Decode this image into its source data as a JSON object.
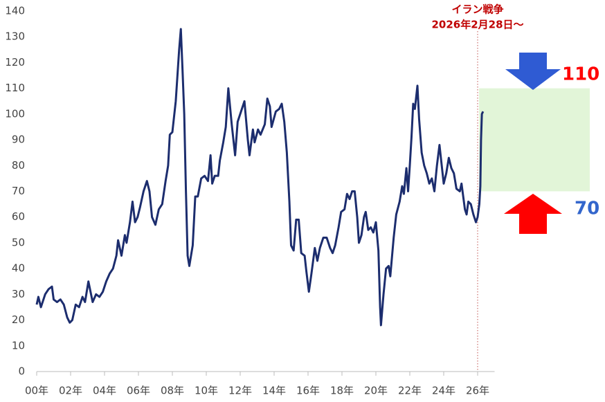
{
  "chart_data": {
    "type": "line",
    "x": [
      2000.0,
      2000.1,
      2000.25,
      2000.5,
      2000.7,
      2000.9,
      2001.0,
      2001.2,
      2001.4,
      2001.6,
      2001.8,
      2001.95,
      2002.1,
      2002.3,
      2002.5,
      2002.7,
      2002.85,
      2003.05,
      2003.3,
      2003.5,
      2003.7,
      2003.9,
      2004.1,
      2004.3,
      2004.5,
      2004.7,
      2004.8,
      2005.0,
      2005.2,
      2005.3,
      2005.5,
      2005.65,
      2005.8,
      2005.95,
      2006.1,
      2006.3,
      2006.5,
      2006.65,
      2006.8,
      2007.0,
      2007.2,
      2007.4,
      2007.6,
      2007.75,
      2007.85,
      2008.0,
      2008.2,
      2008.4,
      2008.5,
      2008.6,
      2008.7,
      2008.8,
      2008.9,
      2009.0,
      2009.2,
      2009.35,
      2009.5,
      2009.7,
      2009.9,
      2010.1,
      2010.25,
      2010.35,
      2010.5,
      2010.7,
      2010.8,
      2011.0,
      2011.15,
      2011.3,
      2011.5,
      2011.7,
      2011.85,
      2012.05,
      2012.25,
      2012.45,
      2012.55,
      2012.75,
      2012.85,
      2013.05,
      2013.2,
      2013.45,
      2013.6,
      2013.75,
      2013.85,
      2014.1,
      2014.3,
      2014.45,
      2014.6,
      2014.75,
      2014.9,
      2015.0,
      2015.15,
      2015.3,
      2015.45,
      2015.6,
      2015.8,
      2015.9,
      2016.05,
      2016.2,
      2016.4,
      2016.55,
      2016.7,
      2016.9,
      2017.1,
      2017.3,
      2017.45,
      2017.6,
      2017.8,
      2017.95,
      2018.15,
      2018.3,
      2018.45,
      2018.6,
      2018.75,
      2018.9,
      2019.0,
      2019.15,
      2019.3,
      2019.4,
      2019.55,
      2019.7,
      2019.85,
      2020.0,
      2020.15,
      2020.25,
      2020.3,
      2020.45,
      2020.6,
      2020.75,
      2020.85,
      2021.05,
      2021.2,
      2021.4,
      2021.55,
      2021.65,
      2021.8,
      2021.9,
      2022.0,
      2022.1,
      2022.2,
      2022.3,
      2022.45,
      2022.55,
      2022.7,
      2022.85,
      2023.0,
      2023.15,
      2023.3,
      2023.45,
      2023.6,
      2023.75,
      2023.85,
      2024.0,
      2024.15,
      2024.3,
      2024.45,
      2024.6,
      2024.75,
      2024.95,
      2025.05,
      2025.25,
      2025.35,
      2025.45,
      2025.6,
      2025.75,
      2025.9,
      2026.0,
      2026.1,
      2026.16,
      2026.2,
      2026.25,
      2026.32
    ],
    "values": [
      26,
      29,
      25,
      30,
      32,
      33,
      28,
      27,
      28,
      26,
      21,
      19,
      20,
      26,
      25,
      29,
      27,
      35,
      27,
      30,
      29,
      31,
      35,
      38,
      40,
      45,
      51,
      45,
      53,
      50,
      58,
      66,
      58,
      60,
      64,
      70,
      74,
      70,
      60,
      57,
      63,
      65,
      74,
      80,
      92,
      93,
      105,
      125,
      133,
      117,
      100,
      70,
      45,
      41,
      49,
      68,
      68,
      75,
      76,
      74,
      84,
      73,
      76,
      76,
      82,
      89,
      95,
      110,
      96,
      84,
      97,
      101,
      105,
      90,
      84,
      94,
      89,
      94,
      92,
      96,
      106,
      103,
      95,
      101,
      102,
      104,
      97,
      85,
      66,
      49,
      47,
      59,
      59,
      46,
      45,
      39,
      31,
      38,
      48,
      43,
      48,
      52,
      52,
      48,
      46,
      49,
      56,
      62,
      63,
      69,
      67,
      70,
      70,
      60,
      50,
      53,
      60,
      62,
      55,
      56,
      54,
      58,
      47,
      25,
      18,
      30,
      40,
      41,
      37,
      52,
      61,
      66,
      72,
      69,
      79,
      70,
      80,
      91,
      104,
      102,
      111,
      98,
      85,
      80,
      77,
      73,
      75,
      70,
      80,
      88,
      82,
      73,
      77,
      83,
      79,
      77,
      71,
      70,
      73,
      63,
      61,
      66,
      65,
      61,
      58,
      60,
      65,
      72,
      90,
      100,
      101
    ],
    "color": "#1c2d6e",
    "xlim": [
      2000,
      2027
    ],
    "xticks": [
      {
        "value": 2000,
        "label": "00年"
      },
      {
        "value": 2002,
        "label": "02年"
      },
      {
        "value": 2004,
        "label": "04年"
      },
      {
        "value": 2006,
        "label": "06年"
      },
      {
        "value": 2008,
        "label": "08年"
      },
      {
        "value": 2010,
        "label": "10年"
      },
      {
        "value": 2012,
        "label": "12年"
      },
      {
        "value": 2014,
        "label": "14年"
      },
      {
        "value": 2016,
        "label": "16年"
      },
      {
        "value": 2018,
        "label": "18年"
      },
      {
        "value": 2020,
        "label": "20年"
      },
      {
        "value": 2022,
        "label": "22年"
      },
      {
        "value": 2024,
        "label": "24年"
      },
      {
        "value": 2026,
        "label": "26年"
      }
    ],
    "ylim": [
      0,
      140
    ],
    "yticks": [
      0,
      10,
      20,
      30,
      40,
      50,
      60,
      70,
      80,
      90,
      100,
      110,
      120,
      130,
      140
    ],
    "grid": false,
    "event": {
      "x": 2026.0,
      "lines": [
        "イラン戦争",
        "2026年2月28日～"
      ]
    },
    "range": {
      "high": 110,
      "low": 70
    }
  }
}
